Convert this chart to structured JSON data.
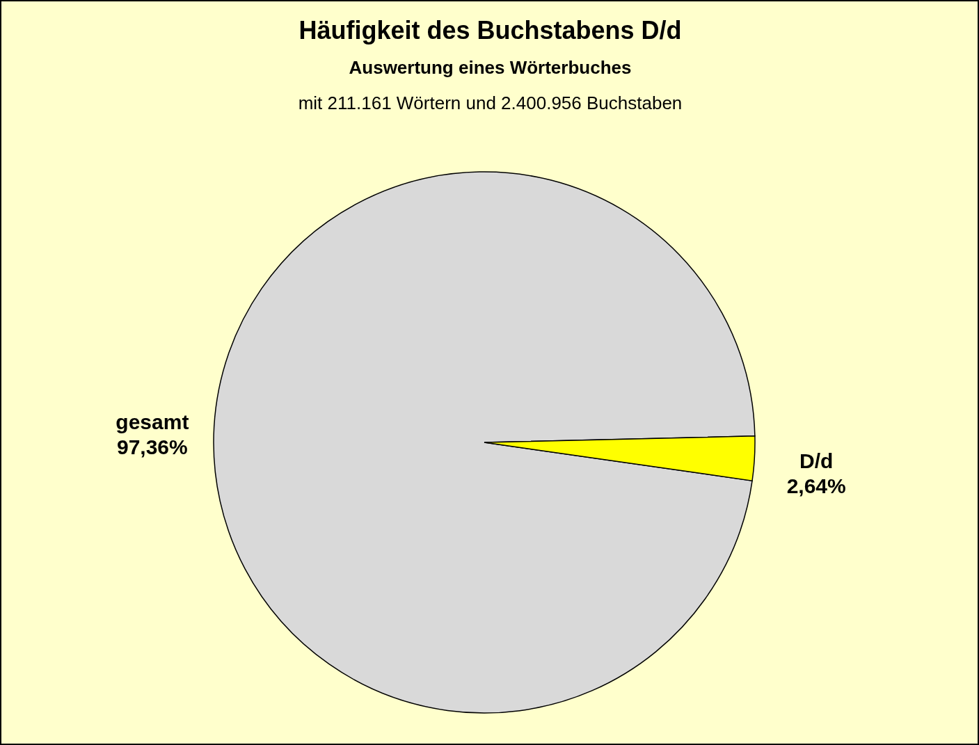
{
  "chart_data": {
    "type": "pie",
    "title": "Häufigkeit des Buchstabens D/d",
    "subtitle": "Auswertung eines Wörterbuches",
    "annotations": [
      "mit 211.161 Wörtern und 2.400.956 Buchstaben"
    ],
    "categories": [
      "gesamt",
      "D/d"
    ],
    "values": [
      97.36,
      2.64
    ],
    "colors": [
      "#d9d9d9",
      "#ffff00"
    ],
    "value_labels": [
      "97,36%",
      "2,64%"
    ]
  }
}
